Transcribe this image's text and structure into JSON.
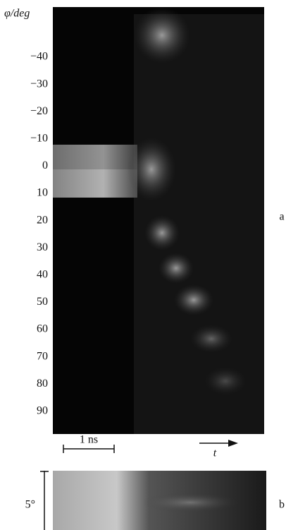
{
  "panel_a": {
    "axis_label": "φ/deg",
    "ticks": [
      "−40",
      "−30",
      "−20",
      "−10",
      "0",
      "10",
      "20",
      "30",
      "40",
      "50",
      "60",
      "70",
      "80",
      "90"
    ],
    "label": "a",
    "scale_bar": "1 ns",
    "time_arrow": "t"
  },
  "panel_b": {
    "scale_label": "5°",
    "label": "b"
  }
}
